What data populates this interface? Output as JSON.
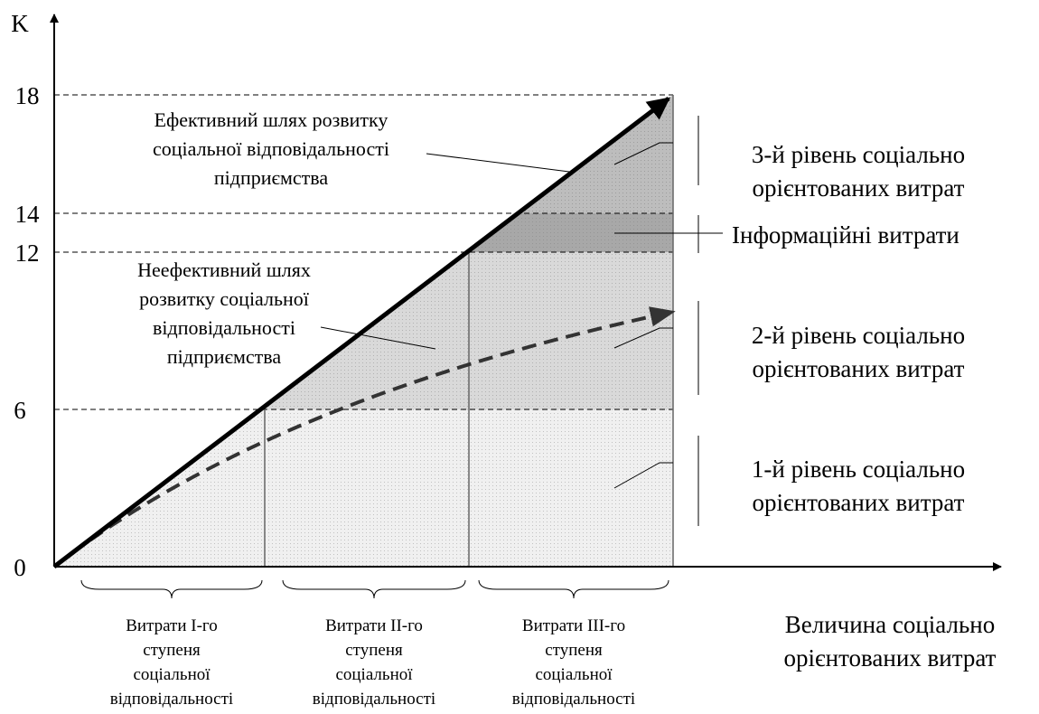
{
  "y_axis": {
    "label": "K",
    "ticks": [
      "0",
      "6",
      "12",
      "14",
      "18"
    ]
  },
  "x_axis": {
    "label": [
      "Величина соціально",
      "орієнтованих витрат"
    ]
  },
  "annotations": {
    "effective_path": [
      "Ефективний шлях розвитку",
      "соціальної відповідальності",
      "підприємства"
    ],
    "ineffective_path": [
      "Неефективний шлях",
      "розвитку соціальної",
      "відповідальності",
      "підприємства"
    ],
    "level_3": [
      "3-й рівень соціально",
      "орієнтованих витрат"
    ],
    "information_costs": "Інформаційні витрати",
    "level_2": [
      "2-й рівень соціально",
      "орієнтованих витрат"
    ],
    "level_1": [
      "1-й рівень соціально",
      "орієнтованих витрат"
    ]
  },
  "stages": [
    [
      "Витрати I-го",
      "ступеня",
      "соціальної",
      "відповідальності"
    ],
    [
      "Витрати II-го",
      "ступеня",
      "соціальної",
      "відповідальності"
    ],
    [
      "Витрати III-го",
      "ступеня",
      "соціальної",
      "відповідальності"
    ]
  ]
}
